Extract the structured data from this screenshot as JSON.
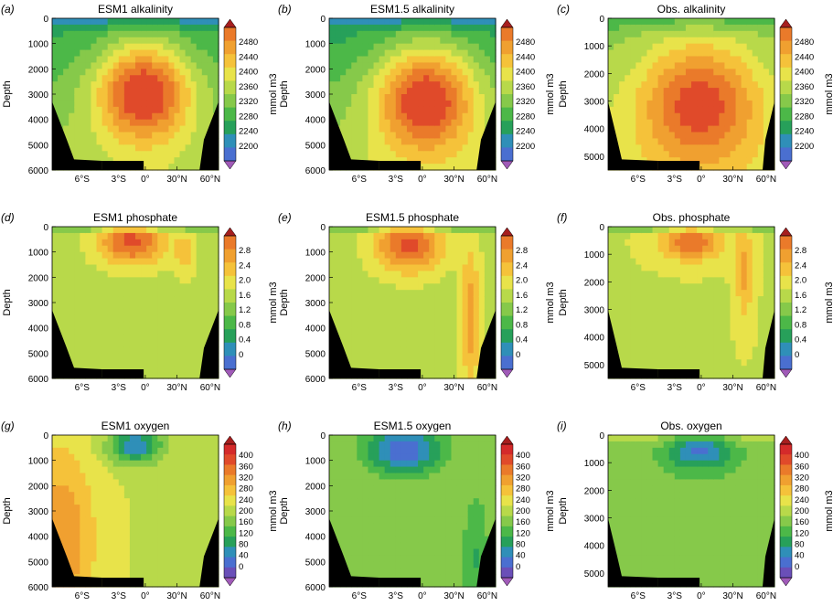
{
  "colorbar_palette": [
    "#a05ab8",
    "#6a4fb8",
    "#4a6fd0",
    "#2f8fb8",
    "#27a05a",
    "#4cb848",
    "#86c94a",
    "#b8d94a",
    "#e8e34a",
    "#f5c23a",
    "#f0a030",
    "#ea7a2a",
    "#e04a2a",
    "#d42a2a",
    "#a61e1e"
  ],
  "chart_data": [
    {
      "panel": "(a)",
      "type": "heatmap",
      "title": "ESM1 alkalinity",
      "ylabel": "Depth",
      "y_ticks": [
        "0",
        "1000",
        "2000",
        "3000",
        "4000",
        "5000",
        "6000"
      ],
      "x_ticks": [
        "6°S",
        "3°S",
        "0°",
        "30°N",
        "60°N"
      ],
      "cbar_unit": "mmol m3",
      "cbar_ticks": [
        "2480",
        "2440",
        "2400",
        "2360",
        "2320",
        "2280",
        "2240",
        "2200"
      ],
      "field": "alk_model",
      "deep": true
    },
    {
      "panel": "(b)",
      "type": "heatmap",
      "title": "ESM1.5 alkalinity",
      "ylabel": "Depth",
      "y_ticks": [
        "0",
        "1000",
        "2000",
        "3000",
        "4000",
        "5000",
        "6000"
      ],
      "x_ticks": [
        "6°S",
        "3°S",
        "0°",
        "30°N",
        "60°N"
      ],
      "cbar_unit": "mmol m3",
      "cbar_ticks": [
        "2480",
        "2440",
        "2400",
        "2360",
        "2320",
        "2280",
        "2240",
        "2200"
      ],
      "field": "alk_model15",
      "deep": true
    },
    {
      "panel": "(c)",
      "type": "heatmap",
      "title": "Obs. alkalinity",
      "ylabel": "Depth",
      "y_ticks": [
        "0",
        "1000",
        "2000",
        "3000",
        "4000",
        "5000"
      ],
      "x_ticks": [
        "6°S",
        "3°S",
        "0°",
        "30°N",
        "60°N"
      ],
      "cbar_unit": "mmol m3",
      "cbar_ticks": [
        "2480",
        "2440",
        "2400",
        "2360",
        "2320",
        "2280",
        "2240",
        "2200"
      ],
      "field": "alk_obs",
      "deep": false
    },
    {
      "panel": "(d)",
      "type": "heatmap",
      "title": "ESM1 phosphate",
      "ylabel": "Depth",
      "y_ticks": [
        "0",
        "1000",
        "2000",
        "3000",
        "4000",
        "5000",
        "6000"
      ],
      "x_ticks": [
        "6°S",
        "3°S",
        "0°",
        "30°N",
        "60°N"
      ],
      "cbar_unit": "mmol m3",
      "cbar_ticks": [
        "2.8",
        "2.4",
        "2.0",
        "1.6",
        "1.2",
        "0.8",
        "0.4",
        "0"
      ],
      "field": "po4",
      "deep": true
    },
    {
      "panel": "(e)",
      "type": "heatmap",
      "title": "ESM1.5 phosphate",
      "ylabel": "Depth",
      "y_ticks": [
        "0",
        "1000",
        "2000",
        "3000",
        "4000",
        "5000",
        "6000"
      ],
      "x_ticks": [
        "6°S",
        "3°S",
        "0°",
        "30°N",
        "60°N"
      ],
      "cbar_unit": "mmol m3",
      "cbar_ticks": [
        "2.8",
        "2.4",
        "2.0",
        "1.6",
        "1.2",
        "0.8",
        "0.4",
        "0"
      ],
      "field": "po4b",
      "deep": true
    },
    {
      "panel": "(f)",
      "type": "heatmap",
      "title": "Obs. phosphate",
      "ylabel": "Depth",
      "y_ticks": [
        "0",
        "1000",
        "2000",
        "3000",
        "4000",
        "5000"
      ],
      "x_ticks": [
        "6°S",
        "3°S",
        "0°",
        "30°N",
        "60°N"
      ],
      "cbar_unit": "mmol m3",
      "cbar_ticks": [
        "2.8",
        "2.4",
        "2.0",
        "1.6",
        "1.2",
        "0.8",
        "0.4",
        "0"
      ],
      "field": "po4obs",
      "deep": false
    },
    {
      "panel": "(g)",
      "type": "heatmap",
      "title": "ESM1 oxygen",
      "ylabel": "Depth",
      "y_ticks": [
        "0",
        "1000",
        "2000",
        "3000",
        "4000",
        "5000",
        "6000"
      ],
      "x_ticks": [
        "6°S",
        "3°S",
        "0°",
        "30°N",
        "60°N"
      ],
      "cbar_unit": "mmol m3",
      "cbar_ticks": [
        "400",
        "360",
        "320",
        "280",
        "240",
        "200",
        "160",
        "120",
        "80",
        "40",
        "0"
      ],
      "field": "o2",
      "deep": true
    },
    {
      "panel": "(h)",
      "type": "heatmap",
      "title": "ESM1.5 oxygen",
      "ylabel": "Depth",
      "y_ticks": [
        "0",
        "1000",
        "2000",
        "3000",
        "4000",
        "5000",
        "6000"
      ],
      "x_ticks": [
        "6°S",
        "3°S",
        "0°",
        "30°N",
        "60°N"
      ],
      "cbar_unit": "mmol m3",
      "cbar_ticks": [
        "400",
        "360",
        "320",
        "280",
        "240",
        "200",
        "160",
        "120",
        "80",
        "40",
        "0"
      ],
      "field": "o2b",
      "deep": true
    },
    {
      "panel": "(i)",
      "type": "heatmap",
      "title": "Obs. oxygen",
      "ylabel": "Depth",
      "y_ticks": [
        "0",
        "1000",
        "2000",
        "3000",
        "4000",
        "5000"
      ],
      "x_ticks": [
        "6°S",
        "3°S",
        "0°",
        "30°N",
        "60°N"
      ],
      "cbar_unit": "mmol m3",
      "cbar_ticks": [
        "400",
        "360",
        "320",
        "280",
        "240",
        "200",
        "160",
        "120",
        "80",
        "40",
        "0"
      ],
      "field": "o2obs",
      "deep": false
    }
  ]
}
